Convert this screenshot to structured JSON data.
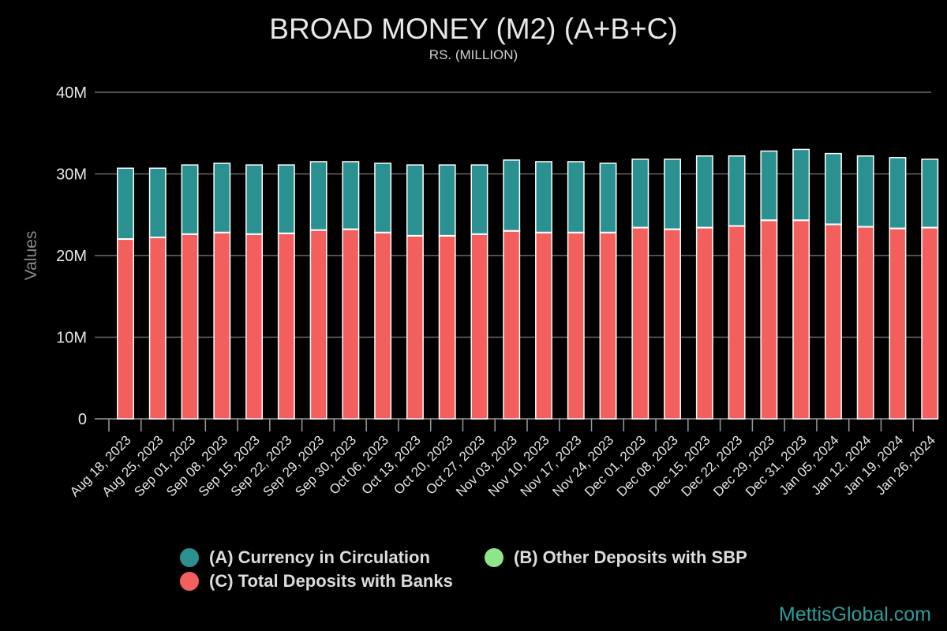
{
  "title": "BROAD MONEY (M2) (A+B+C)",
  "subtitle": "RS. (MILLION)",
  "watermark": "MettisGlobal.com",
  "colors": {
    "currency": "#2a9190",
    "other": "#8fe58a",
    "deposits": "#f25f5c",
    "grid": "#6a6a6a",
    "axis_text": "#e6e6e6"
  },
  "chart_data": {
    "type": "bar",
    "stacked": true,
    "ylabel": "Values",
    "xlabel": "",
    "ylim": [
      0,
      40000000
    ],
    "y_ticks": [
      0,
      10000000,
      20000000,
      30000000,
      40000000
    ],
    "y_tick_labels": [
      "0",
      "10M",
      "20M",
      "30M",
      "40M"
    ],
    "grid": true,
    "legend_position": "bottom",
    "categories": [
      "Aug 18, 2023",
      "Aug 25, 2023",
      "Sep 01, 2023",
      "Sep 08, 2023",
      "Sep 15, 2023",
      "Sep 22, 2023",
      "Sep 29, 2023",
      "Sep 30, 2023",
      "Oct 06, 2023",
      "Oct 13, 2023",
      "Oct 20, 2023",
      "Oct 27, 2023",
      "Nov 03, 2023",
      "Nov 10, 2023",
      "Nov 17, 2023",
      "Nov 24, 2023",
      "Dec 01, 2023",
      "Dec 08, 2023",
      "Dec 15, 2023",
      "Dec 22, 2023",
      "Dec 29, 2023",
      "Dec 31, 2023",
      "Jan 05, 2024",
      "Jan 12, 2024",
      "Jan 19, 2024",
      "Jan 26, 2024"
    ],
    "series": [
      {
        "name": "(C) Total Deposits with Banks",
        "color_key": "deposits",
        "values": [
          22000000,
          22200000,
          22600000,
          22800000,
          22600000,
          22700000,
          23100000,
          23200000,
          22800000,
          22400000,
          22400000,
          22600000,
          23000000,
          22800000,
          22800000,
          22800000,
          23400000,
          23200000,
          23400000,
          23600000,
          24300000,
          24300000,
          23800000,
          23500000,
          23300000,
          23400000
        ]
      },
      {
        "name": "(B) Other Deposits with SBP",
        "color_key": "other",
        "values": [
          50000,
          50000,
          50000,
          50000,
          50000,
          50000,
          50000,
          50000,
          50000,
          50000,
          50000,
          50000,
          50000,
          50000,
          50000,
          50000,
          50000,
          50000,
          50000,
          50000,
          50000,
          50000,
          50000,
          50000,
          50000,
          50000
        ]
      },
      {
        "name": "(A) Currency in Circulation",
        "color_key": "currency",
        "values": [
          8650000,
          8450000,
          8450000,
          8450000,
          8450000,
          8350000,
          8350000,
          8250000,
          8450000,
          8650000,
          8650000,
          8450000,
          8650000,
          8650000,
          8650000,
          8450000,
          8350000,
          8550000,
          8750000,
          8550000,
          8450000,
          8650000,
          8650000,
          8650000,
          8650000,
          8350000
        ]
      }
    ]
  },
  "legend": {
    "items": [
      {
        "label": "(A) Currency in Circulation",
        "color_key": "currency"
      },
      {
        "label": "(B) Other Deposits with SBP",
        "color_key": "other"
      },
      {
        "label": "(C) Total Deposits with Banks",
        "color_key": "deposits"
      }
    ]
  }
}
